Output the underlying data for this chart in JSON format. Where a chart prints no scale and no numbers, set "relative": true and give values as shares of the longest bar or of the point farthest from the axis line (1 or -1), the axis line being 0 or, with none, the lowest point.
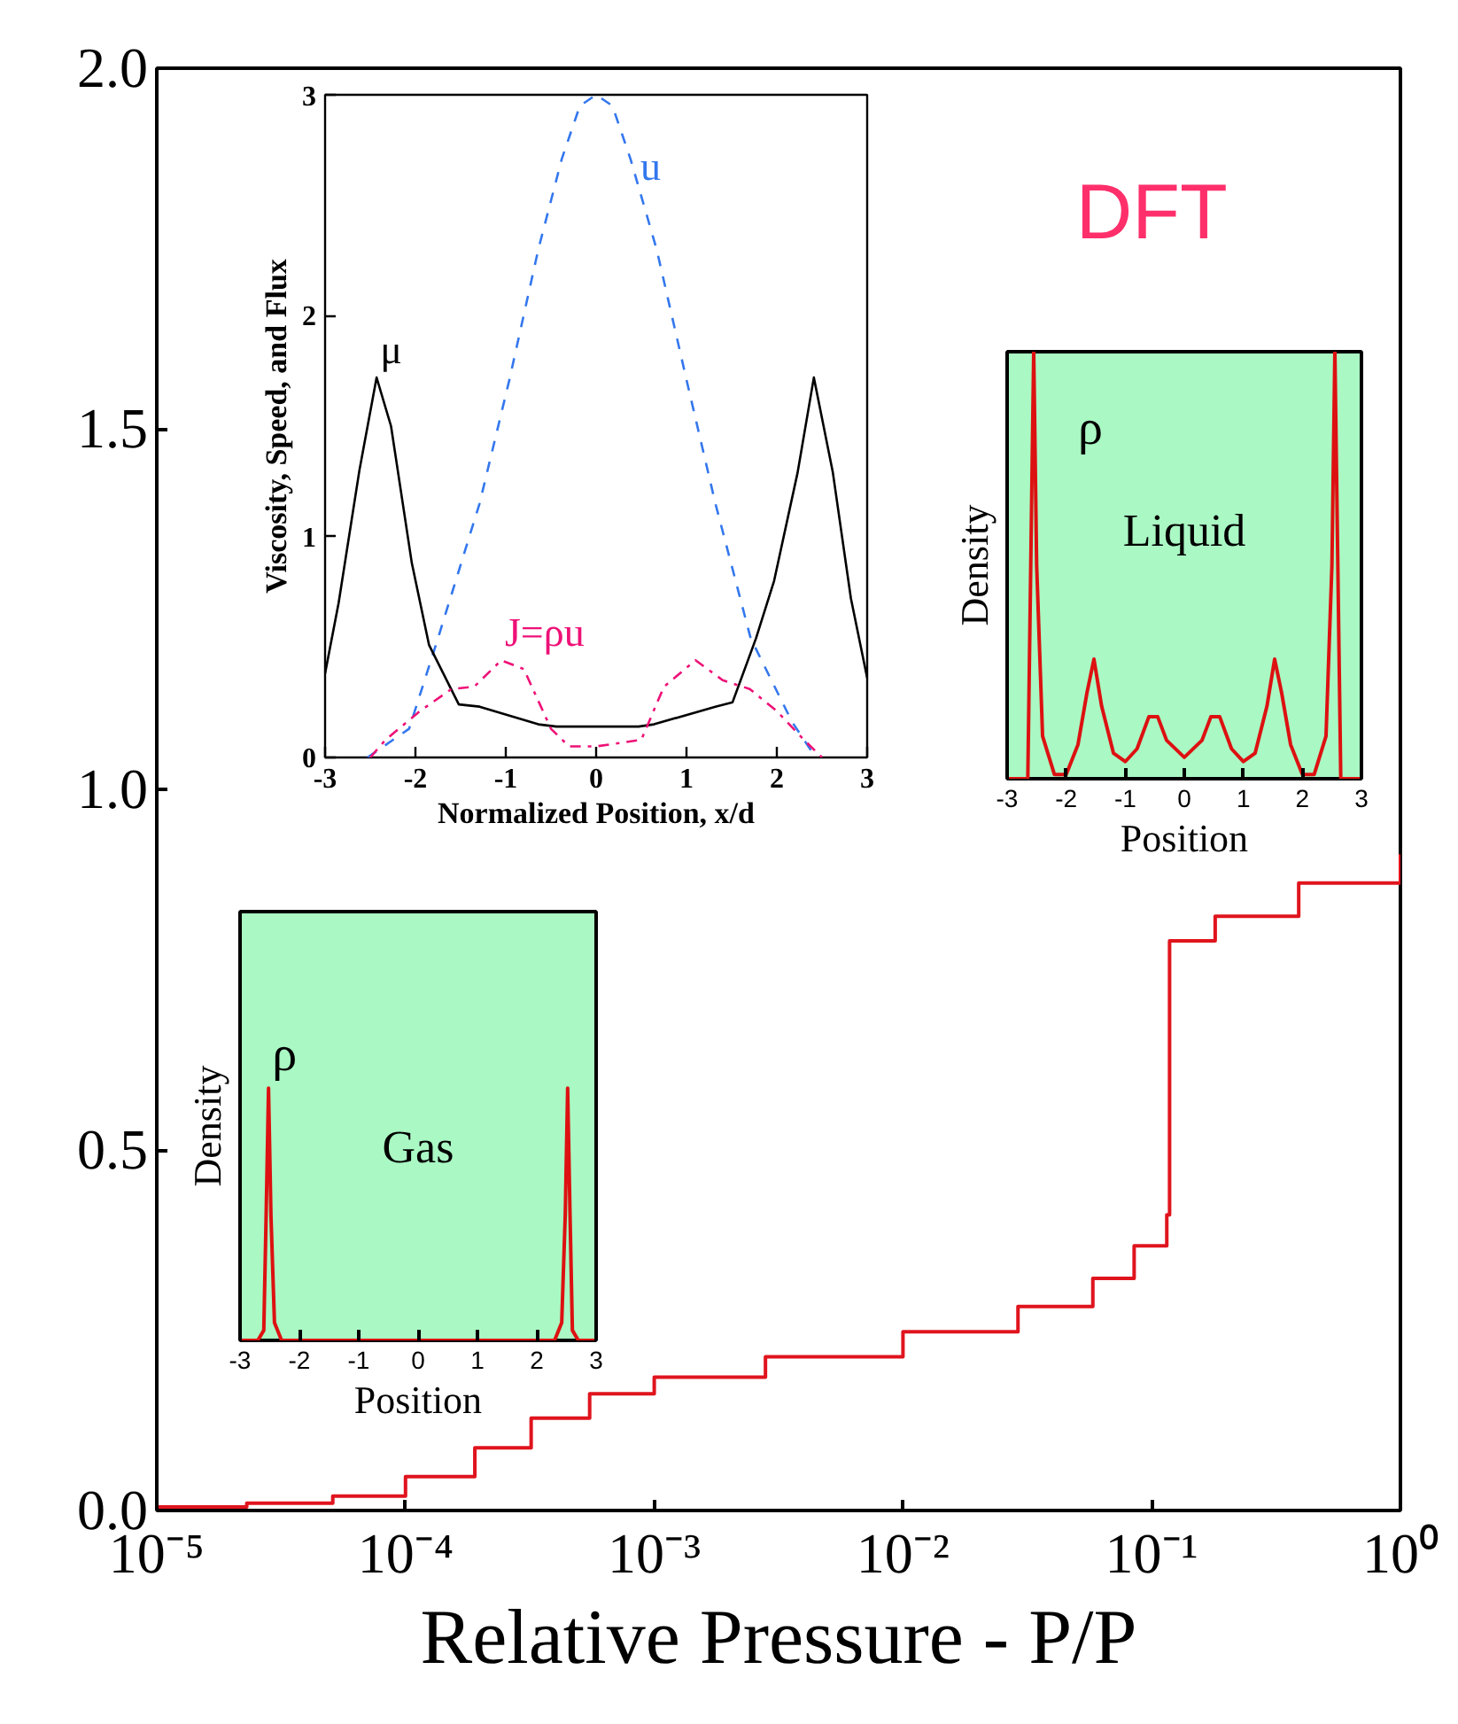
{
  "chart_data": [
    {
      "type": "step",
      "xlabel": "Relative Pressure - P/P",
      "log": "x",
      "grid": false,
      "color": "#e0141e",
      "annotations": [
        "DFT"
      ],
      "x": [
        1e-05,
        2.3e-05,
        5.1e-05,
        0.0001,
        0.00019,
        0.00032,
        0.00055,
        0.001,
        0.0028,
        0.01,
        0.029,
        0.058,
        0.085,
        0.115,
        0.118,
        0.18,
        0.39,
        1
      ],
      "values": [
        0.005,
        0.01,
        0.02,
        0.047,
        0.087,
        0.128,
        0.162,
        0.185,
        0.213,
        0.248,
        0.283,
        0.322,
        0.367,
        0.41,
        0.79,
        0.824,
        0.87,
        0.91
      ],
      "xlim": [
        1e-05,
        1
      ],
      "ylim": [
        0,
        2
      ],
      "xticks": [
        {
          "value": 1e-05,
          "label": "10⁻⁵"
        },
        {
          "value": 0.0001,
          "label": "10⁻⁴"
        },
        {
          "value": 0.001,
          "label": "10⁻³"
        },
        {
          "value": 0.01,
          "label": "10⁻²"
        },
        {
          "value": 0.1,
          "label": "10⁻¹"
        },
        {
          "value": 1,
          "label": "10⁰"
        }
      ],
      "yticks": [
        {
          "value": 0,
          "label": "0.0"
        },
        {
          "value": 0.5,
          "label": "0.5"
        },
        {
          "value": 1,
          "label": "1.0"
        },
        {
          "value": 1.5,
          "label": "1.5"
        },
        {
          "value": 2,
          "label": "2.0"
        }
      ]
    },
    {
      "type": "line",
      "xlabel": "Normalized Position, x/d",
      "ylabel": "Viscosity, Speed, and Flux",
      "grid": false,
      "xlim": [
        -3,
        3
      ],
      "ylim": [
        0,
        3
      ],
      "xticks": [
        -3,
        -2,
        -1,
        0,
        1,
        2,
        3
      ],
      "yticks": [
        0,
        1,
        2,
        3
      ],
      "series": [
        {
          "name": "u",
          "color": "#3377ee",
          "line_style": "dashed",
          "x": [
            -2.53,
            -2.07,
            -1.75,
            -1.29,
            -0.96,
            -0.64,
            -0.38,
            -0.18,
            0,
            0.18,
            0.38,
            0.67,
            1.0,
            1.32,
            1.71,
            2.17,
            2.43
          ],
          "values": [
            0,
            0.13,
            0.54,
            1.15,
            1.71,
            2.3,
            2.71,
            2.95,
            3.0,
            2.95,
            2.71,
            2.3,
            1.71,
            1.15,
            0.54,
            0.16,
            0
          ]
        },
        {
          "name": "μ",
          "color": "#000000",
          "line_style": "solid",
          "x": [
            -3,
            -2.85,
            -2.62,
            -2.43,
            -2.27,
            -2.04,
            -1.85,
            -1.52,
            -1.29,
            -0.64,
            -0.44,
            0,
            0.47,
            0.64,
            1.32,
            1.51,
            1.77,
            1.97,
            2.23,
            2.41,
            2.62,
            2.82,
            3
          ],
          "values": [
            0.38,
            0.7,
            1.3,
            1.72,
            1.5,
            0.88,
            0.51,
            0.24,
            0.23,
            0.15,
            0.14,
            0.14,
            0.14,
            0.15,
            0.23,
            0.25,
            0.54,
            0.8,
            1.29,
            1.72,
            1.29,
            0.72,
            0.36
          ]
        },
        {
          "name": "J=ρu",
          "color": "#ee1177",
          "line_style": "dashdot",
          "x": [
            -2.5,
            -2.33,
            -1.95,
            -1.6,
            -1.35,
            -1.05,
            -0.8,
            -0.5,
            -0.3,
            0,
            0.5,
            0.75,
            1.1,
            1.4,
            1.7,
            2.0,
            2.3,
            2.5
          ],
          "values": [
            0,
            0.08,
            0.21,
            0.31,
            0.32,
            0.44,
            0.4,
            0.13,
            0.05,
            0.05,
            0.08,
            0.32,
            0.44,
            0.35,
            0.31,
            0.21,
            0.08,
            0
          ]
        }
      ]
    },
    {
      "type": "line",
      "relative": true,
      "xlabel": "Position",
      "ylabel": "Density",
      "tick_labels": "x",
      "grid": false,
      "xlim": [
        -3,
        3
      ],
      "xticks": [
        -3,
        -2,
        -1,
        0,
        1,
        2,
        3
      ],
      "annotations": [
        "Liquid"
      ],
      "series": [
        {
          "name": "ρ",
          "color": "#dd1111",
          "x": [
            -3,
            -2.65,
            -2.6,
            -2.55,
            -2.5,
            -2.4,
            -2.2,
            -2.0,
            -1.8,
            -1.65,
            -1.53,
            -1.4,
            -1.2,
            -1.0,
            -0.8,
            -0.6,
            -0.45,
            -0.3,
            0,
            0.3,
            0.45,
            0.6,
            0.8,
            1.0,
            1.2,
            1.4,
            1.53,
            1.65,
            1.8,
            2.0,
            2.2,
            2.4,
            2.5,
            2.55,
            2.6,
            2.65,
            3
          ],
          "values": [
            0,
            0,
            0.5,
            1,
            0.5,
            0.1,
            0.01,
            0.01,
            0.08,
            0.2,
            0.28,
            0.17,
            0.06,
            0.04,
            0.07,
            0.145,
            0.145,
            0.09,
            0.05,
            0.09,
            0.145,
            0.145,
            0.07,
            0.04,
            0.06,
            0.17,
            0.28,
            0.2,
            0.08,
            0.01,
            0.01,
            0.1,
            0.5,
            1,
            0.5,
            0,
            0
          ]
        }
      ]
    },
    {
      "type": "line",
      "relative": true,
      "xlabel": "Position",
      "ylabel": "Density",
      "tick_labels": "x",
      "grid": false,
      "xlim": [
        -3,
        3
      ],
      "xticks": [
        -3,
        -2,
        -1,
        0,
        1,
        2,
        3
      ],
      "annotations": [
        "Gas"
      ],
      "series": [
        {
          "name": "ρ",
          "color": "#dd1111",
          "x": [
            -3,
            -2.7,
            -2.6,
            -2.56,
            -2.52,
            -2.48,
            -2.42,
            -2.3,
            2.3,
            2.42,
            2.48,
            2.52,
            2.56,
            2.6,
            2.7,
            3
          ],
          "values": [
            0,
            0,
            0.04,
            0.5,
            1,
            0.5,
            0.07,
            0,
            0,
            0.07,
            0.5,
            1,
            0.5,
            0.04,
            0,
            0
          ]
        }
      ]
    }
  ]
}
